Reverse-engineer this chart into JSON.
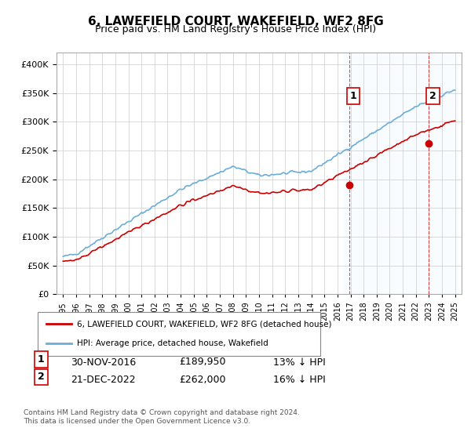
{
  "title": "6, LAWEFIELD COURT, WAKEFIELD, WF2 8FG",
  "subtitle": "Price paid vs. HM Land Registry's House Price Index (HPI)",
  "sale1_date": "30-NOV-2016",
  "sale1_price": 189950,
  "sale1_label": "1",
  "sale1_note": "13% ↓ HPI",
  "sale2_date": "21-DEC-2022",
  "sale2_price": 262000,
  "sale2_label": "2",
  "sale2_note": "16% ↓ HPI",
  "legend1": "6, LAWEFIELD COURT, WAKEFIELD, WF2 8FG (detached house)",
  "legend2": "HPI: Average price, detached house, Wakefield",
  "footer1": "Contains HM Land Registry data © Crown copyright and database right 2024.",
  "footer2": "This data is licensed under the Open Government Licence v3.0.",
  "hpi_color": "#6baed6",
  "price_color": "#cc0000",
  "marker_color_1": "#cc0000",
  "marker_color_2": "#cc0000",
  "vline_color": "#cc0000",
  "vline_alpha": 0.5,
  "bg_highlight_color": "#ddeeff",
  "ylim": [
    0,
    420000
  ],
  "yticks": [
    0,
    50000,
    100000,
    150000,
    200000,
    250000,
    300000,
    350000,
    400000
  ]
}
